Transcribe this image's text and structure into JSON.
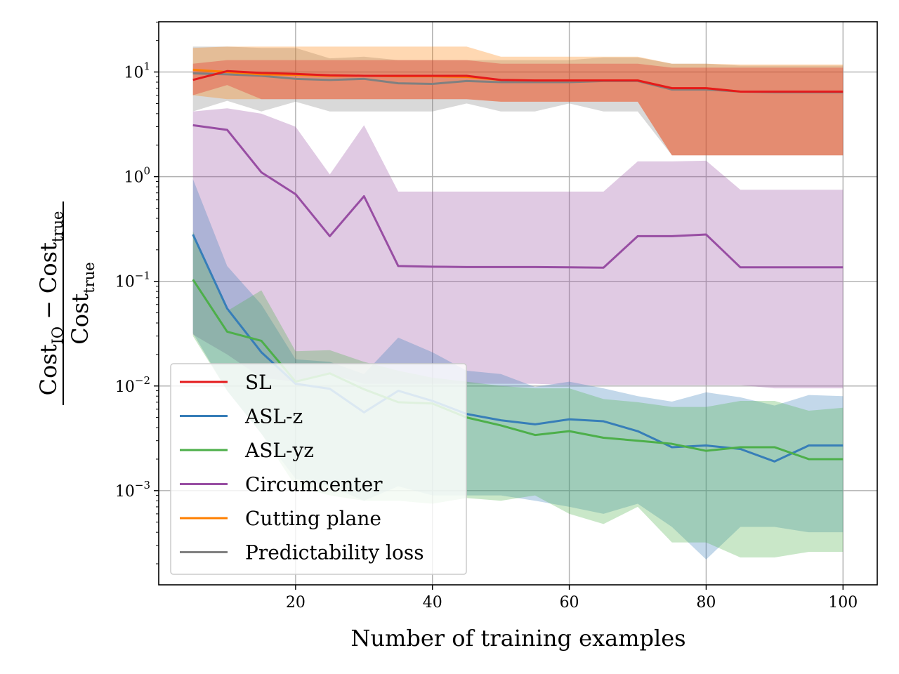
{
  "chart_data": {
    "type": "line",
    "title": "",
    "xlabel": "Number of training examples",
    "ylabel": {
      "numerator_base": "Cost",
      "numerator_sub1": "IO",
      "minus": "−",
      "numerator_sub2": "true",
      "denominator_base": "Cost",
      "denominator_sub": "true"
    },
    "yscale": "log",
    "xlim": [
      0,
      105
    ],
    "ylim_log10": [
      -3.9,
      1.48
    ],
    "xticks": [
      20,
      40,
      60,
      80,
      100
    ],
    "xtick_labels": [
      "20",
      "40",
      "60",
      "80",
      "100"
    ],
    "yticks_log10": [
      -3,
      -2,
      -1,
      0,
      1
    ],
    "ytick_labels": [
      {
        "base": "10",
        "exp": "−3"
      },
      {
        "base": "10",
        "exp": "−2"
      },
      {
        "base": "10",
        "exp": "−1"
      },
      {
        "base": "10",
        "exp": "0"
      },
      {
        "base": "10",
        "exp": "1"
      }
    ],
    "grid": true,
    "legend_position": "bottom-left",
    "x": [
      5,
      10,
      15,
      20,
      25,
      30,
      35,
      40,
      45,
      50,
      55,
      60,
      65,
      70,
      75,
      80,
      85,
      90,
      95,
      100
    ],
    "series": [
      {
        "name": "Circumcenter",
        "color": "#984ea3",
        "values": [
          3.1,
          2.8,
          1.1,
          0.68,
          0.27,
          0.65,
          0.14,
          0.138,
          0.137,
          0.137,
          0.137,
          0.136,
          0.135,
          0.27,
          0.27,
          0.28,
          0.136,
          0.136,
          0.136,
          0.136
        ],
        "band_low": [
          0.031,
          0.02,
          0.012,
          0.011,
          0.013,
          0.0105,
          0.0105,
          0.0105,
          0.0105,
          0.0105,
          0.0105,
          0.0102,
          0.0102,
          0.0102,
          0.0102,
          0.0102,
          0.0102,
          0.0095,
          0.0095,
          0.0095
        ],
        "band_high": [
          4.2,
          4.5,
          4.0,
          3.0,
          1.05,
          3.1,
          0.72,
          0.72,
          0.72,
          0.72,
          0.72,
          0.72,
          0.72,
          1.4,
          1.4,
          1.42,
          0.75,
          0.75,
          0.75,
          0.75
        ]
      },
      {
        "name": "ASL-z",
        "color": "#377eb8",
        "values": [
          0.28,
          0.055,
          0.021,
          0.0105,
          0.0094,
          0.0056,
          0.009,
          0.0072,
          0.0054,
          0.0047,
          0.0043,
          0.0048,
          0.0046,
          0.0037,
          0.0026,
          0.0027,
          0.0025,
          0.0019,
          0.0027,
          0.0027
        ],
        "band_low": [
          0.032,
          0.009,
          0.0035,
          0.0013,
          0.0011,
          0.0008,
          0.0011,
          0.0009,
          0.0009,
          0.0009,
          0.0008,
          0.0007,
          0.0006,
          0.00075,
          0.00045,
          0.00022,
          0.00045,
          0.00045,
          0.0004,
          0.0004
        ],
        "band_high": [
          0.95,
          0.14,
          0.06,
          0.018,
          0.017,
          0.013,
          0.029,
          0.021,
          0.014,
          0.013,
          0.0098,
          0.011,
          0.0095,
          0.008,
          0.0071,
          0.0087,
          0.0078,
          0.0065,
          0.0082,
          0.008
        ]
      },
      {
        "name": "ASL-yz",
        "color": "#4daf4a",
        "values": [
          0.104,
          0.033,
          0.027,
          0.011,
          0.0132,
          0.0093,
          0.007,
          0.0068,
          0.005,
          0.0042,
          0.0034,
          0.0037,
          0.0032,
          0.003,
          0.0028,
          0.0024,
          0.0026,
          0.0026,
          0.002,
          0.002
        ],
        "band_low": [
          0.03,
          0.009,
          0.0035,
          0.0011,
          0.0009,
          0.0008,
          0.0008,
          0.00075,
          0.00085,
          0.0008,
          0.0009,
          0.0006,
          0.00048,
          0.0007,
          0.00032,
          0.00032,
          0.00023,
          0.00023,
          0.00026,
          0.00026
        ],
        "band_high": [
          0.3,
          0.052,
          0.082,
          0.0215,
          0.022,
          0.017,
          0.014,
          0.012,
          0.011,
          0.01,
          0.0095,
          0.0095,
          0.0075,
          0.007,
          0.0063,
          0.0063,
          0.0072,
          0.0072,
          0.0058,
          0.0062
        ]
      },
      {
        "name": "Predictability loss",
        "color": "#808080",
        "values": [
          9.7,
          9.5,
          9.2,
          8.6,
          8.4,
          8.6,
          7.8,
          7.7,
          8.2,
          8.0,
          8.0,
          8.0,
          8.2,
          8.2,
          6.8,
          6.8,
          6.5,
          6.4,
          6.4,
          6.4
        ],
        "band_low": [
          4.2,
          5.3,
          4.2,
          5.2,
          4.2,
          4.2,
          4.2,
          4.2,
          5.0,
          4.2,
          4.2,
          5.0,
          4.2,
          4.2,
          1.6,
          1.6,
          1.6,
          1.6,
          1.6,
          1.6
        ],
        "band_high": [
          17.5,
          17.5,
          17.0,
          17.0,
          13.5,
          14.0,
          13.0,
          13.0,
          13.0,
          13.0,
          13.0,
          13.0,
          13.8,
          13.8,
          12.0,
          12.0,
          11.5,
          11.5,
          11.5,
          11.5
        ]
      },
      {
        "name": "Cutting plane",
        "color": "#ff7f00",
        "values": [
          10.5,
          10.0,
          9.5,
          9.4,
          9.2,
          9.2,
          9.1,
          9.1,
          9.0,
          8.4,
          8.3,
          8.3,
          8.3,
          8.3,
          7.0,
          7.0,
          6.5,
          6.5,
          6.5,
          6.5
        ],
        "band_low": [
          6.0,
          5.5,
          5.5,
          5.5,
          5.5,
          5.5,
          5.5,
          5.5,
          5.5,
          5.2,
          5.2,
          5.2,
          5.2,
          5.2,
          1.6,
          1.6,
          1.6,
          1.6,
          1.6,
          1.6
        ],
        "band_high": [
          17.0,
          17.5,
          17.5,
          17.5,
          17.5,
          17.5,
          17.5,
          17.5,
          17.5,
          14.0,
          14.0,
          14.0,
          14.0,
          14.0,
          12.0,
          12.0,
          11.8,
          11.8,
          11.8,
          11.8
        ]
      },
      {
        "name": "SL",
        "color": "#e41a1c",
        "values": [
          8.4,
          10.2,
          9.8,
          9.6,
          9.3,
          9.2,
          9.2,
          9.2,
          9.2,
          8.4,
          8.3,
          8.3,
          8.3,
          8.3,
          7.0,
          7.0,
          6.5,
          6.5,
          6.5,
          6.5
        ],
        "band_low": [
          6.0,
          7.5,
          5.5,
          5.5,
          5.5,
          5.5,
          5.5,
          5.5,
          5.5,
          5.2,
          5.2,
          5.2,
          5.2,
          5.2,
          1.6,
          1.6,
          1.6,
          1.6,
          1.6,
          1.6
        ],
        "band_high": [
          12.0,
          13.0,
          13.0,
          13.0,
          13.0,
          13.0,
          13.0,
          13.0,
          13.0,
          12.0,
          12.0,
          12.0,
          12.0,
          12.0,
          11.0,
          11.0,
          11.0,
          11.0,
          11.0,
          11.0
        ]
      }
    ],
    "legend_order": [
      "SL",
      "ASL-z",
      "ASL-yz",
      "Circumcenter",
      "Cutting plane",
      "Predictability loss"
    ]
  }
}
